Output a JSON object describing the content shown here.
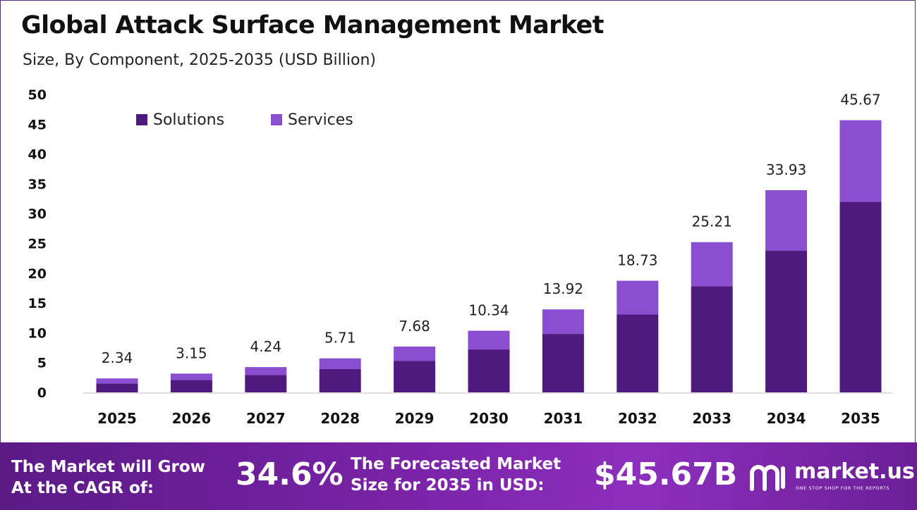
{
  "header": {
    "title": "Global Attack Surface Management Market",
    "subtitle": "Size, By Component, 2025-2035 (USD Billion)"
  },
  "colors": {
    "solutions": "#4e1a7e",
    "services": "#8a4fd0",
    "footer_start": "#5b1a86",
    "footer_end": "#8d2fbd"
  },
  "chart_data": {
    "type": "bar",
    "stacked": true,
    "categories": [
      "2025",
      "2026",
      "2027",
      "2028",
      "2029",
      "2030",
      "2031",
      "2032",
      "2033",
      "2034",
      "2035"
    ],
    "series": [
      {
        "name": "Solutions",
        "values": [
          1.5,
          2.1,
          2.9,
          3.9,
          5.3,
          7.2,
          9.8,
          13.1,
          17.8,
          23.8,
          32.0
        ]
      },
      {
        "name": "Services",
        "values": [
          0.84,
          1.05,
          1.34,
          1.81,
          2.38,
          3.14,
          4.12,
          5.63,
          7.41,
          10.13,
          13.67
        ]
      }
    ],
    "totals": [
      "2.34",
      "3.15",
      "4.24",
      "5.71",
      "7.68",
      "10.34",
      "13.92",
      "18.73",
      "25.21",
      "33.93",
      "45.67"
    ],
    "yticks": [
      "0",
      "5",
      "10",
      "15",
      "20",
      "25",
      "30",
      "35",
      "40",
      "45",
      "50"
    ],
    "ylim": [
      0,
      50
    ],
    "grid": false,
    "legend": "top-left"
  },
  "footer": {
    "cagr_label": "The Market will Grow\nAt the CAGR of:",
    "cagr_value": "34.6%",
    "forecast_label": "The Forecasted Market\nSize for 2035 in USD:",
    "forecast_value": "$45.67B",
    "brand_name": "market.us",
    "brand_tagline": "ONE STOP SHOP FOR THE REPORTS"
  }
}
